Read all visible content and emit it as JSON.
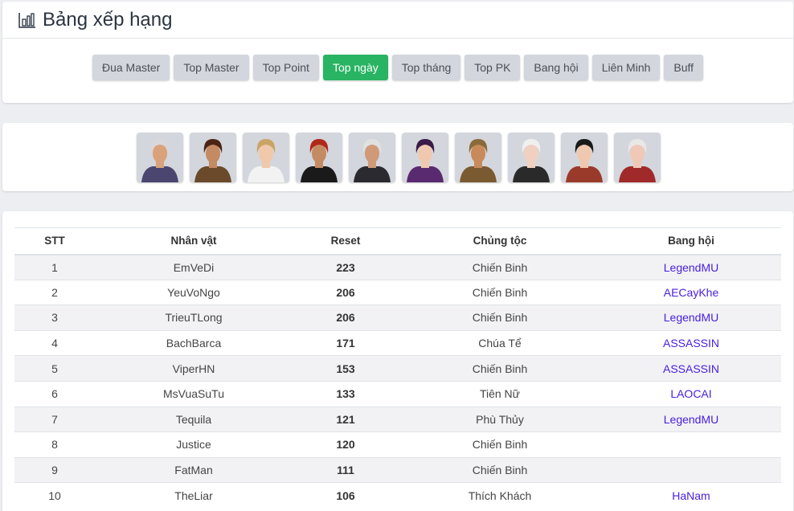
{
  "header": {
    "title": "Bảng xếp hạng",
    "icon": "bar-chart-icon"
  },
  "tabs": [
    {
      "label": "Đua Master",
      "active": false
    },
    {
      "label": "Top Master",
      "active": false
    },
    {
      "label": "Top Point",
      "active": false
    },
    {
      "label": "Top ngày",
      "active": true
    },
    {
      "label": "Top tháng",
      "active": false
    },
    {
      "label": "Top PK",
      "active": false
    },
    {
      "label": "Bang hội",
      "active": false
    },
    {
      "label": "Liên Minh",
      "active": false
    },
    {
      "label": "Buff",
      "active": false
    }
  ],
  "accent": "#28b463",
  "avatars": [
    {
      "hair": "#d8d8dc",
      "skin": "#d9a27a",
      "cloth": "#4a4670"
    },
    {
      "hair": "#4a2414",
      "skin": "#c48a62",
      "cloth": "#6a4a2a"
    },
    {
      "hair": "#c9a466",
      "skin": "#f0c8aa",
      "cloth": "#f2f2f2"
    },
    {
      "hair": "#b0281a",
      "skin": "#c48a62",
      "cloth": "#1a1a1a"
    },
    {
      "hair": "#e0e0e0",
      "skin": "#d09a78",
      "cloth": "#2a2a30"
    },
    {
      "hair": "#3a1a4a",
      "skin": "#f0c8b0",
      "cloth": "#5a2a70"
    },
    {
      "hair": "#8a6a3a",
      "skin": "#c88a5a",
      "cloth": "#7a5a30"
    },
    {
      "hair": "#f0f0f0",
      "skin": "#f0d0c0",
      "cloth": "#2a2a2a"
    },
    {
      "hair": "#1a1a1a",
      "skin": "#f0c8b0",
      "cloth": "#9a3a2a"
    },
    {
      "hair": "#e8e8e8",
      "skin": "#f0c8b8",
      "cloth": "#a02a2a"
    }
  ],
  "table": {
    "headers": [
      "STT",
      "Nhân vật",
      "Reset",
      "Chủng tộc",
      "Bang hội"
    ],
    "rows": [
      [
        "1",
        "EmVeDi",
        "223",
        "Chiến Binh",
        "LegendMU"
      ],
      [
        "2",
        "YeuVoNgo",
        "206",
        "Chiến Binh",
        "AECayKhe"
      ],
      [
        "3",
        "TrieuTLong",
        "206",
        "Chiến Binh",
        "LegendMU"
      ],
      [
        "4",
        "BachBarca",
        "171",
        "Chúa Tể",
        "ASSASSIN"
      ],
      [
        "5",
        "ViperHN",
        "153",
        "Chiến Binh",
        "ASSASSIN"
      ],
      [
        "6",
        "MsVuaSuTu",
        "133",
        "Tiên Nữ",
        "LAOCAI"
      ],
      [
        "7",
        "Tequila",
        "121",
        "Phù Thủy",
        "LegendMU"
      ],
      [
        "8",
        "Justice",
        "120",
        "Chiến Binh",
        ""
      ],
      [
        "9",
        "FatMan",
        "111",
        "Chiến Binh",
        ""
      ],
      [
        "10",
        "TheLiar",
        "106",
        "Thích Khách",
        "HaNam"
      ]
    ]
  }
}
